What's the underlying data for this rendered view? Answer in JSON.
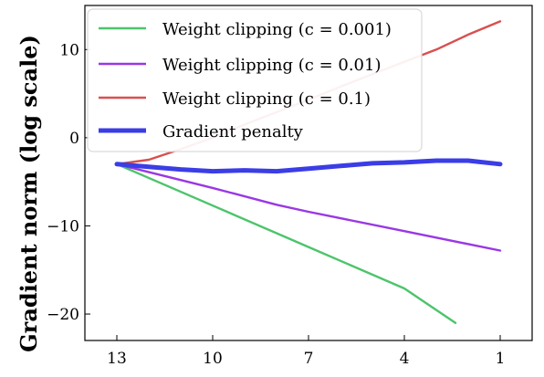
{
  "chart_data": {
    "type": "line",
    "ylabel": "Gradient norm (log scale)",
    "xlabel": "",
    "x_ticks": [
      13,
      10,
      7,
      4,
      1
    ],
    "y_ticks": [
      10,
      0,
      -10,
      -20
    ],
    "y_tick_labels": [
      "10",
      "0",
      "−10",
      "−20"
    ],
    "xlim": [
      14,
      0
    ],
    "ylim": [
      -23,
      15
    ],
    "legend_position": "top-left",
    "grid": false,
    "series": [
      {
        "name": "Weight clipping (c = 0.001)",
        "color": "#4cc46a",
        "x": [
          13,
          10,
          7,
          4,
          2.4
        ],
        "y": [
          -3,
          -7.7,
          -12.4,
          -17.1,
          -21
        ]
      },
      {
        "name": "Weight clipping (c = 0.01)",
        "color": "#9a38e4",
        "x": [
          13,
          10,
          8,
          7,
          4,
          1
        ],
        "y": [
          -3,
          -5.7,
          -7.6,
          -8.4,
          -10.6,
          -12.8
        ]
      },
      {
        "name": "Weight clipping (c = 0.1)",
        "color": "#d94f4f",
        "x": [
          13,
          12,
          11,
          10,
          9,
          8,
          7,
          6,
          5,
          4,
          3,
          2,
          1
        ],
        "y": [
          -3,
          -2.5,
          -1.3,
          0,
          1.5,
          2.9,
          4.3,
          5.8,
          7.2,
          8.6,
          10.0,
          11.7,
          13.2
        ]
      },
      {
        "name": "Gradient penalty",
        "color": "#3b3de6",
        "x": [
          13,
          12,
          11,
          10,
          9,
          8,
          7,
          6,
          5,
          4,
          3,
          2,
          1
        ],
        "y": [
          -3,
          -3.3,
          -3.6,
          -3.8,
          -3.7,
          -3.8,
          -3.5,
          -3.2,
          -2.9,
          -2.8,
          -2.6,
          -2.6,
          -3
        ]
      }
    ]
  }
}
